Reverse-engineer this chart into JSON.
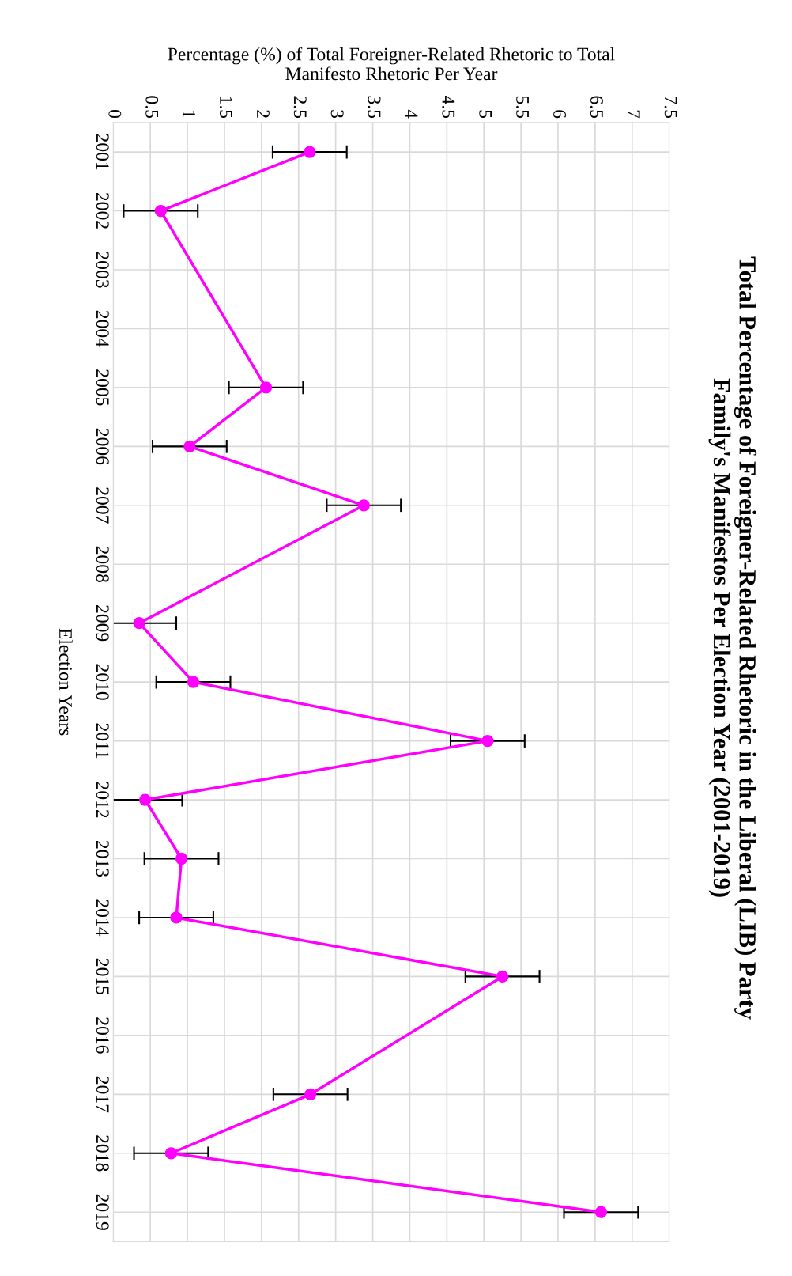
{
  "chart_data": {
    "type": "line",
    "title": "Total Percentage of Foreigner-Related Rhetoric in the Liberal (LIB) Party\nFamily's Manifestos Per Election Year (2001-2019)",
    "ylabel": "Election Years",
    "xlabel": "Percentage (%) of Total Foreigner-Related Rhetoric to Total\nManifesto Rhetoric Per Year",
    "categories": [
      "2001",
      "2002",
      "2003",
      "2004",
      "2005",
      "2006",
      "2007",
      "2008",
      "2009",
      "2010",
      "2011",
      "2012",
      "2013",
      "2014",
      "2015",
      "2016",
      "2017",
      "2018",
      "2019"
    ],
    "series": [
      {
        "color": "#ff00ff",
        "values": [
          2.65,
          0.64,
          null,
          null,
          2.06,
          1.03,
          3.38,
          null,
          0.35,
          1.08,
          5.05,
          0.43,
          0.92,
          0.85,
          5.25,
          null,
          2.66,
          0.78,
          6.58
        ],
        "errors": [
          0.5,
          0.5,
          null,
          null,
          0.5,
          0.5,
          0.5,
          null,
          0.5,
          0.5,
          0.5,
          0.5,
          0.5,
          0.5,
          0.5,
          null,
          0.5,
          0.5,
          0.5
        ]
      }
    ],
    "orientation": "horizontal",
    "xlim": [
      0,
      7.5
    ],
    "xticks": [
      0,
      0.5,
      1,
      1.5,
      2,
      2.5,
      3,
      3.5,
      4,
      4.5,
      5,
      5.5,
      6,
      6.5,
      7,
      7.5
    ],
    "grid": true,
    "marker": "circle",
    "line_style": "solid"
  }
}
